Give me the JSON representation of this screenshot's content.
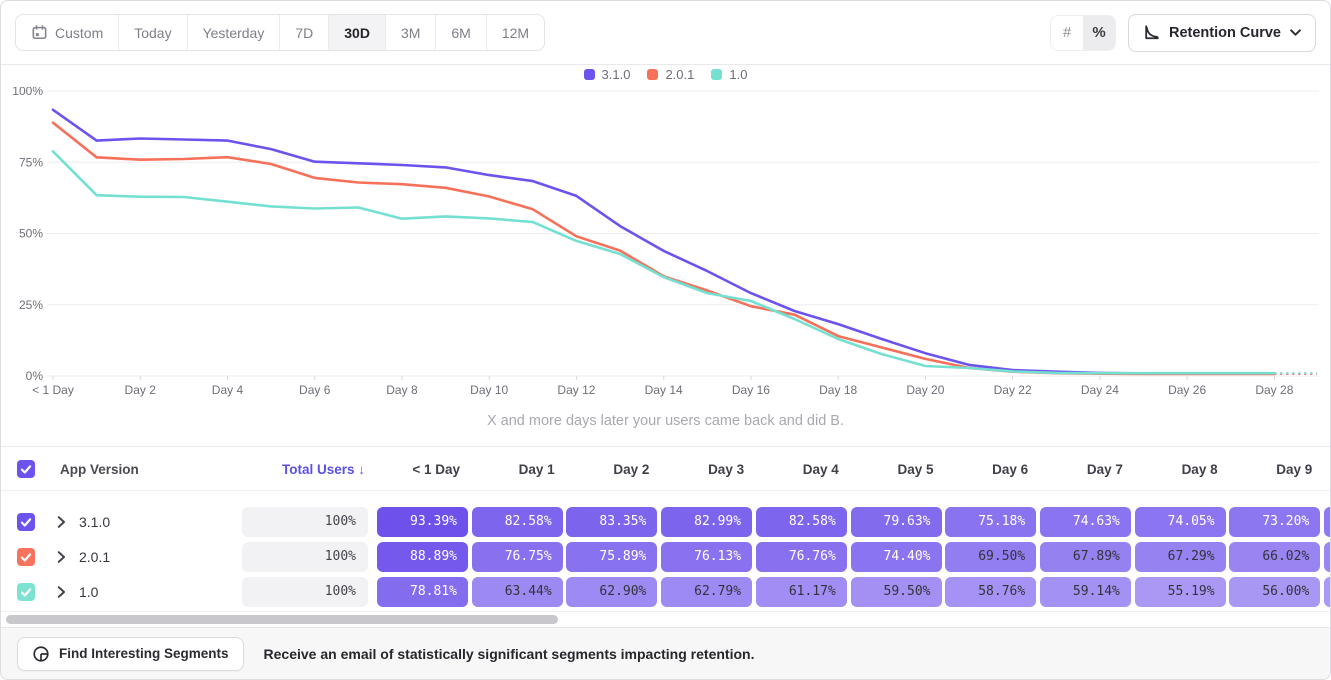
{
  "toolbar": {
    "date_ranges": [
      "Custom",
      "Today",
      "Yesterday",
      "7D",
      "30D",
      "3M",
      "6M",
      "12M"
    ],
    "selected_range": "30D",
    "mode_toggle": {
      "options": [
        "#",
        "%"
      ],
      "selected": "%"
    },
    "chart_type_label": "Retention Curve"
  },
  "legend": [
    {
      "label": "3.1.0",
      "color": "#6d53ee"
    },
    {
      "label": "2.0.1",
      "color": "#f7705a"
    },
    {
      "label": "1.0",
      "color": "#74e0d1"
    }
  ],
  "chart_data": {
    "type": "line",
    "title": "",
    "xlabel": "X and more days later your users came back and did B.",
    "ylabel": "",
    "ylim": [
      0,
      100
    ],
    "ytick_labels": [
      "0%",
      "25%",
      "50%",
      "75%",
      "100%"
    ],
    "yticks": [
      0,
      25,
      50,
      75,
      100
    ],
    "x_is_days": true,
    "x_range_days": [
      0,
      28
    ],
    "xtick_days": [
      0,
      2,
      4,
      6,
      8,
      10,
      12,
      14,
      16,
      18,
      20,
      22,
      24,
      26,
      28
    ],
    "xtick_labels": [
      "< 1 Day",
      "Day 2",
      "Day 4",
      "Day 6",
      "Day 8",
      "Day 10",
      "Day 12",
      "Day 14",
      "Day 16",
      "Day 18",
      "Day 20",
      "Day 22",
      "Day 24",
      "Day 26",
      "Day 28"
    ],
    "grid": true,
    "legend_position": "top-center",
    "dashed_projection_after_last_day": true,
    "series": [
      {
        "name": "3.1.0",
        "color": "#6d53ee",
        "values": [
          93.39,
          82.58,
          83.35,
          82.99,
          82.58,
          79.63,
          75.18,
          74.63,
          74.05,
          73.2,
          70.5,
          68.4,
          63.2,
          52.6,
          43.9,
          36.8,
          29.1,
          22.8,
          18.2,
          13.0,
          8.0,
          3.9,
          2.1,
          1.5,
          1.1,
          0.9,
          0.85,
          0.85,
          0.85
        ]
      },
      {
        "name": "2.0.1",
        "color": "#f7705a",
        "values": [
          88.89,
          76.75,
          75.89,
          76.13,
          76.76,
          74.4,
          69.5,
          67.89,
          67.29,
          66.02,
          63.0,
          58.5,
          49.0,
          44.0,
          35.0,
          30.0,
          24.5,
          21.5,
          14.0,
          10.0,
          6.0,
          2.8,
          1.5,
          1.0,
          0.8,
          0.7,
          0.7,
          0.7,
          0.7
        ]
      },
      {
        "name": "1.0",
        "color": "#74e0d1",
        "values": [
          78.81,
          63.44,
          62.9,
          62.79,
          61.17,
          59.5,
          58.76,
          59.14,
          55.19,
          56.0,
          55.3,
          54.0,
          47.4,
          42.8,
          34.7,
          29.1,
          26.3,
          20.0,
          13.0,
          7.7,
          3.5,
          2.8,
          1.6,
          1.1,
          1.0,
          1.0,
          1.0,
          1.0,
          1.0
        ]
      }
    ]
  },
  "subtitle": "X and more days later your users came back and did B.",
  "table": {
    "select_all_checked": true,
    "columns": {
      "app_version": "App Version",
      "total_users": "Total Users",
      "sort_arrow": "↓",
      "days": [
        "< 1 Day",
        "Day 1",
        "Day 2",
        "Day 3",
        "Day 4",
        "Day 5",
        "Day 6",
        "Day 7",
        "Day 8",
        "Day 9"
      ]
    },
    "rows": [
      {
        "label": "3.1.0",
        "checkbox_color": "#6d53ee",
        "checked": true,
        "total_users": "100%",
        "values": [
          93.39,
          82.58,
          83.35,
          82.99,
          82.58,
          79.63,
          75.18,
          74.63,
          74.05,
          73.2
        ]
      },
      {
        "label": "2.0.1",
        "checkbox_color": "#f8735e",
        "checked": true,
        "total_users": "100%",
        "values": [
          88.89,
          76.75,
          75.89,
          76.13,
          76.76,
          74.4,
          69.5,
          67.89,
          67.29,
          66.02
        ]
      },
      {
        "label": "1.0",
        "checkbox_color": "#7de2d1",
        "checked": true,
        "total_users": "100%",
        "values": [
          78.81,
          63.44,
          62.9,
          62.79,
          61.17,
          59.5,
          58.76,
          59.14,
          55.19,
          56.0
        ]
      }
    ]
  },
  "footer": {
    "button_label": "Find Interesting Segments",
    "message": "Receive an email of statistically significant segments impacting retention."
  }
}
